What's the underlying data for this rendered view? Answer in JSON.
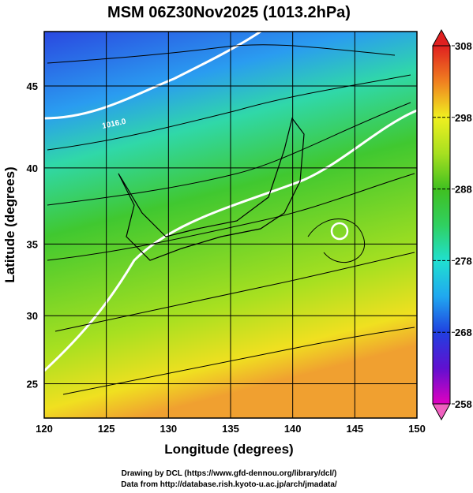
{
  "title": "MSM 06Z30Nov2025 (1013.2hPa)",
  "projection": "mercator",
  "x_axis": {
    "label": "Longitude (degrees)",
    "lim": [
      120,
      150
    ],
    "ticks": [
      120,
      125,
      130,
      135,
      140,
      145,
      150
    ]
  },
  "y_axis": {
    "label": "Latitude  (degrees)",
    "lim": [
      22.4,
      48.1
    ],
    "ticks": [
      25,
      30,
      35,
      40,
      45
    ]
  },
  "colorbar": {
    "lim": [
      258,
      308
    ],
    "ticks": [
      258,
      268,
      278,
      288,
      298,
      308
    ]
  },
  "contour_label": "1016.0",
  "credits": [
    "Drawing by DCL (https://www.gfd-dennou.org/library/dcl/)",
    "Data from http://database.rish.kyoto-u.ac.jp/arch/jmadata/"
  ]
}
